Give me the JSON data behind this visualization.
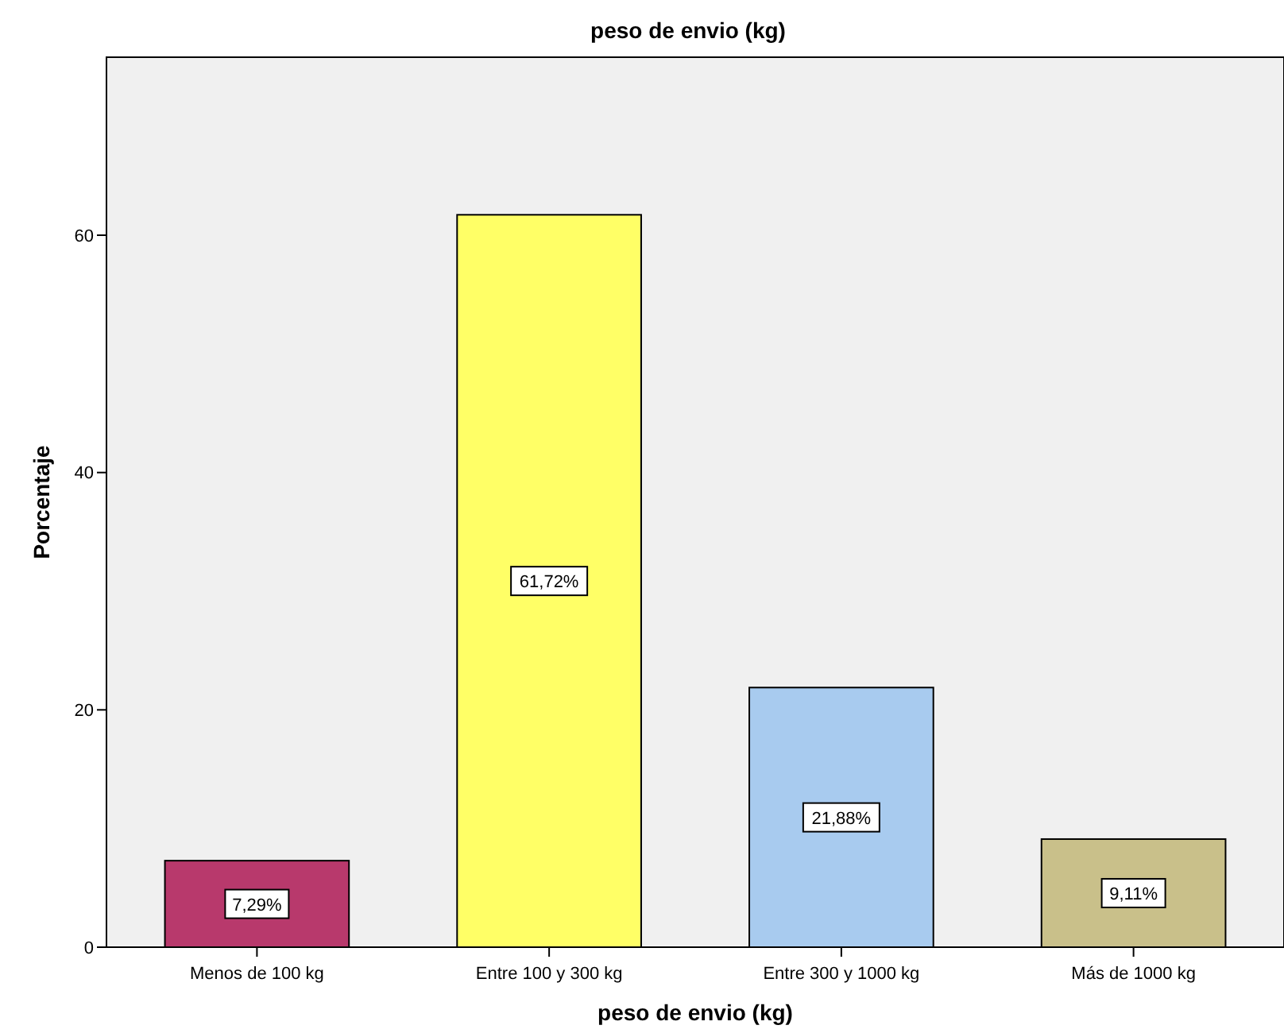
{
  "chart_data": {
    "type": "bar",
    "title": "peso de envio (kg)",
    "xlabel": "peso de envio (kg)",
    "ylabel": "Porcentaje",
    "categories": [
      "Menos de 100 kg",
      "Entre 100 y 300 kg",
      "Entre 300 y 1000 kg",
      "Más de 1000 kg"
    ],
    "values": [
      7.29,
      61.72,
      21.88,
      9.11
    ],
    "colors": [
      "#b8396c",
      "#ffff66",
      "#a8cbef",
      "#c9c08a"
    ],
    "value_labels": [
      "7,29%",
      "61,72%",
      "21,88%",
      "9,11%"
    ],
    "ylim": [
      0,
      75
    ],
    "yticks": [
      0,
      20,
      40,
      60
    ],
    "grid": false
  }
}
